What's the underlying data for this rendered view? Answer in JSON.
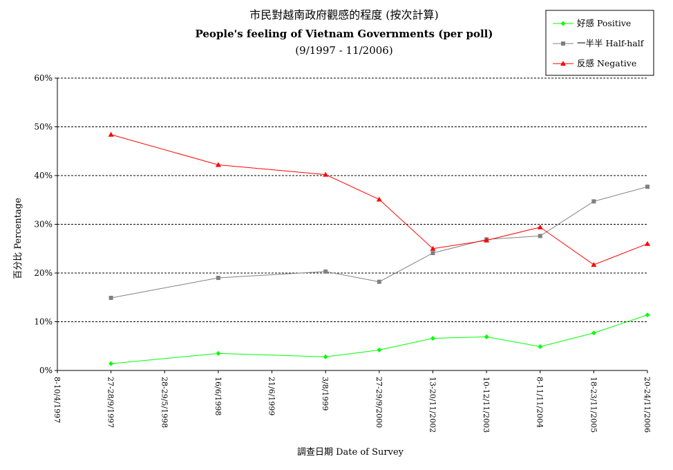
{
  "chart_data": {
    "type": "line",
    "title": "市民對越南政府觀感的程度 (按次計算)",
    "subtitle": "People's feeling of Vietnam Governments (per poll)",
    "subtitle2": "(9/1997 - 11/2006)",
    "xlabel": "調查日期 Date of Survey",
    "ylabel": "百分比 Percentage",
    "ylim": [
      0,
      60
    ],
    "y_ticks": [
      "0%",
      "10%",
      "20%",
      "30%",
      "40%",
      "50%",
      "60%"
    ],
    "grid": true,
    "legend_position": "top-right",
    "categories": [
      "8-10/4/1997",
      "27-28/9/1997",
      "28-29/5/1998",
      "16/6/1998",
      "21/6/1999",
      "3/8/1999",
      "27-29/9/2000",
      "13-20/11/2002",
      "10-12/11/2003",
      "8-11/11/2004",
      "18-23/11/2005",
      "20-24/11/2006"
    ],
    "series": [
      {
        "name": "好感 Positive",
        "color": "#00ff00",
        "marker": "diamond",
        "values": [
          null,
          1.4,
          null,
          3.5,
          null,
          2.8,
          4.2,
          6.6,
          6.9,
          4.9,
          7.7,
          11.4
        ]
      },
      {
        "name": "一半半 Half-half",
        "color": "#808080",
        "marker": "square",
        "values": [
          null,
          14.9,
          null,
          19.0,
          null,
          20.3,
          18.2,
          24.1,
          26.9,
          27.6,
          34.7,
          37.7
        ]
      },
      {
        "name": "反感 Negative",
        "color": "#ff0000",
        "marker": "triangle",
        "values": [
          null,
          48.4,
          null,
          42.2,
          null,
          40.2,
          35.1,
          25.0,
          26.7,
          29.4,
          21.7,
          26.0
        ]
      }
    ]
  }
}
